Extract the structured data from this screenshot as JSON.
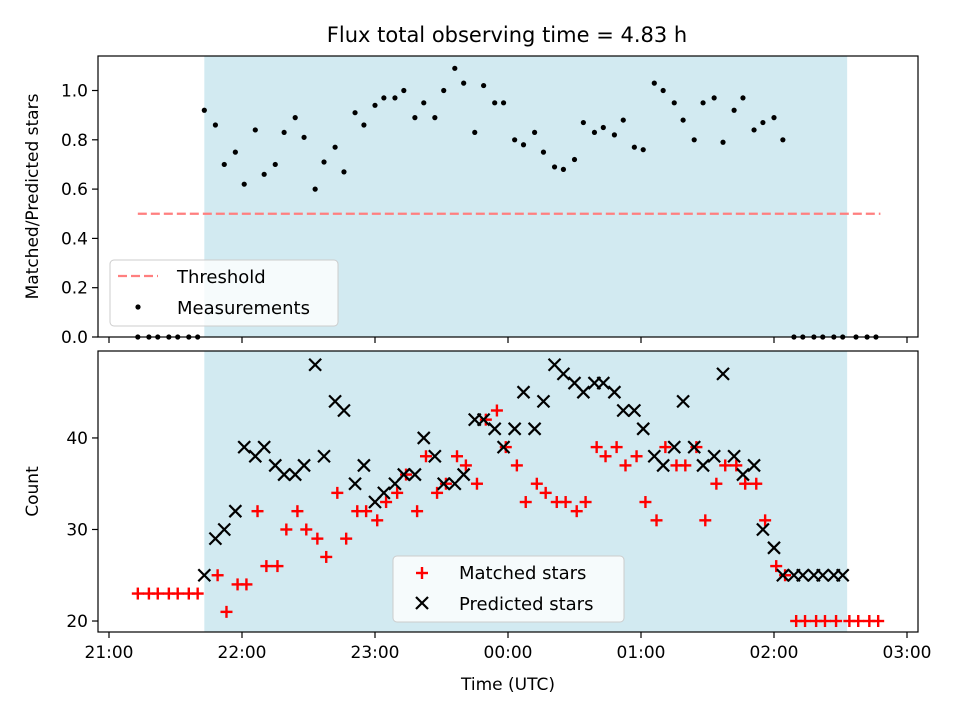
{
  "figure": {
    "title": "Flux total observing time = 4.83 h",
    "background": "#ffffff",
    "shade_color": "#add8e6"
  },
  "chart_data": [
    {
      "type": "scatter",
      "panel": "top",
      "title": "Flux total observing time = 4.83 h",
      "xlabel": "",
      "ylabel": "Matched/Predicted stars",
      "xlim": [
        "21:00",
        "03:00"
      ],
      "ylim": [
        0.0,
        1.14
      ],
      "yticks": [
        "0.0",
        "0.2",
        "0.4",
        "0.6",
        "0.8",
        "1.0"
      ],
      "ytick_values": [
        0.0,
        0.2,
        0.4,
        0.6,
        0.8,
        1.0
      ],
      "grid": false,
      "legend": "lower-left",
      "shaded_span": [
        "21:43",
        "02:33"
      ],
      "threshold": {
        "name": "Threshold",
        "value": 0.5,
        "x_range": [
          "21:13",
          "02:48"
        ],
        "color": "#ff7f7f",
        "style": "dashed"
      },
      "series": [
        {
          "name": "Measurements",
          "marker": "dot",
          "color": "#000000",
          "x": [
            "21:13",
            "21:18",
            "21:22",
            "21:27",
            "21:31",
            "21:36",
            "21:40",
            "21:43",
            "21:48",
            "21:52",
            "21:57",
            "22:01",
            "22:06",
            "22:10",
            "22:15",
            "22:19",
            "22:24",
            "22:28",
            "22:33",
            "22:37",
            "22:42",
            "22:46",
            "22:51",
            "22:55",
            "23:00",
            "23:04",
            "23:09",
            "23:13",
            "23:18",
            "23:22",
            "23:27",
            "23:31",
            "23:36",
            "23:40",
            "23:45",
            "23:49",
            "23:54",
            "23:58",
            "00:03",
            "00:07",
            "00:12",
            "00:16",
            "00:21",
            "00:25",
            "00:30",
            "00:34",
            "00:39",
            "00:43",
            "00:48",
            "00:52",
            "00:57",
            "01:01",
            "01:06",
            "01:10",
            "01:15",
            "01:19",
            "01:24",
            "01:28",
            "01:33",
            "01:37",
            "01:42",
            "01:46",
            "01:51",
            "01:55",
            "02:00",
            "02:04",
            "02:09",
            "02:13",
            "02:18",
            "02:22",
            "02:27",
            "02:31",
            "02:37",
            "02:42",
            "02:46"
          ],
          "y": [
            0.0,
            0.0,
            0.0,
            0.0,
            0.0,
            0.0,
            0.0,
            0.92,
            0.86,
            0.7,
            0.75,
            0.62,
            0.84,
            0.66,
            0.7,
            0.83,
            0.89,
            0.81,
            0.6,
            0.71,
            0.77,
            0.67,
            0.91,
            0.86,
            0.94,
            0.97,
            0.97,
            1.0,
            0.89,
            0.95,
            0.89,
            1.0,
            1.09,
            1.03,
            0.83,
            1.02,
            0.95,
            0.95,
            0.8,
            0.78,
            0.83,
            0.75,
            0.69,
            0.68,
            0.72,
            0.87,
            0.83,
            0.85,
            0.82,
            0.88,
            0.77,
            0.76,
            1.03,
            1.0,
            0.95,
            0.88,
            0.8,
            0.95,
            0.97,
            0.79,
            0.92,
            0.97,
            0.84,
            0.87,
            0.89,
            0.8,
            0.0,
            0.0,
            0.0,
            0.0,
            0.0,
            0.0,
            0.0,
            0.0,
            0.0
          ]
        }
      ]
    },
    {
      "type": "scatter",
      "panel": "bottom",
      "title": "",
      "xlabel": "Time (UTC)",
      "ylabel": "Count",
      "xlim": [
        "21:00",
        "03:00"
      ],
      "xticks": [
        "21:00",
        "22:00",
        "23:00",
        "00:00",
        "01:00",
        "02:00",
        "03:00"
      ],
      "ylim": [
        18.8,
        49.5
      ],
      "yticks": [
        "20",
        "30",
        "40"
      ],
      "ytick_values": [
        20,
        30,
        40
      ],
      "grid": false,
      "legend": "lower-center",
      "shaded_span": [
        "21:43",
        "02:33"
      ],
      "series": [
        {
          "name": "Matched stars",
          "marker": "plus",
          "color": "#ff0000",
          "x": [
            "21:13",
            "21:18",
            "21:22",
            "21:27",
            "21:31",
            "21:36",
            "21:40",
            "21:49",
            "21:53",
            "21:58",
            "22:02",
            "22:07",
            "22:11",
            "22:16",
            "22:20",
            "22:25",
            "22:29",
            "22:34",
            "22:38",
            "22:43",
            "22:47",
            "22:52",
            "22:56",
            "23:01",
            "23:05",
            "23:10",
            "23:14",
            "23:19",
            "23:23",
            "23:28",
            "23:32",
            "23:37",
            "23:41",
            "23:46",
            "23:50",
            "23:55",
            "23:59",
            "00:04",
            "00:08",
            "00:13",
            "00:17",
            "00:22",
            "00:26",
            "00:31",
            "00:35",
            "00:40",
            "00:44",
            "00:49",
            "00:53",
            "00:58",
            "01:02",
            "01:07",
            "01:11",
            "01:16",
            "01:20",
            "01:25",
            "01:29",
            "01:34",
            "01:38",
            "01:43",
            "01:47",
            "01:52",
            "01:56",
            "02:01",
            "02:05",
            "02:10",
            "02:14",
            "02:19",
            "02:23",
            "02:28",
            "02:34",
            "02:38",
            "02:43",
            "02:47"
          ],
          "y": [
            23,
            23,
            23,
            23,
            23,
            23,
            23,
            25,
            21,
            24,
            24,
            32,
            26,
            26,
            30,
            32,
            30,
            29,
            27,
            34,
            29,
            32,
            32,
            31,
            33,
            34,
            36,
            32,
            38,
            34,
            35,
            38,
            37,
            35,
            42,
            43,
            39,
            37,
            33,
            35,
            34,
            33,
            33,
            32,
            33,
            39,
            38,
            39,
            37,
            38,
            33,
            31,
            39,
            37,
            37,
            39,
            31,
            35,
            37,
            37,
            35,
            35,
            31,
            26,
            25,
            20,
            20,
            20,
            20,
            20,
            20,
            20,
            20,
            20
          ]
        },
        {
          "name": "Predicted stars",
          "marker": "x",
          "color": "#000000",
          "x": [
            "21:43",
            "21:48",
            "21:52",
            "21:57",
            "22:01",
            "22:06",
            "22:10",
            "22:15",
            "22:19",
            "22:24",
            "22:28",
            "22:33",
            "22:37",
            "22:42",
            "22:46",
            "22:51",
            "22:55",
            "23:00",
            "23:04",
            "23:09",
            "23:13",
            "23:18",
            "23:22",
            "23:27",
            "23:31",
            "23:36",
            "23:40",
            "23:45",
            "23:49",
            "23:54",
            "23:58",
            "00:03",
            "00:07",
            "00:12",
            "00:16",
            "00:21",
            "00:25",
            "00:30",
            "00:34",
            "00:39",
            "00:43",
            "00:48",
            "00:52",
            "00:57",
            "01:01",
            "01:06",
            "01:10",
            "01:15",
            "01:19",
            "01:24",
            "01:28",
            "01:33",
            "01:37",
            "01:42",
            "01:46",
            "01:51",
            "01:55",
            "02:00",
            "02:04",
            "02:09",
            "02:13",
            "02:18",
            "02:22",
            "02:27",
            "02:31"
          ],
          "y": [
            25,
            29,
            30,
            32,
            39,
            38,
            39,
            37,
            36,
            36,
            37,
            48,
            38,
            44,
            43,
            35,
            37,
            33,
            34,
            35,
            36,
            36,
            40,
            38,
            35,
            35,
            36,
            42,
            42,
            41,
            39,
            41,
            45,
            41,
            44,
            48,
            47,
            46,
            45,
            46,
            46,
            45,
            43,
            43,
            41,
            38,
            37,
            39,
            44,
            39,
            37,
            38,
            47,
            38,
            36,
            37,
            30,
            28,
            25,
            25,
            25,
            25,
            25,
            25,
            25
          ]
        }
      ]
    }
  ]
}
